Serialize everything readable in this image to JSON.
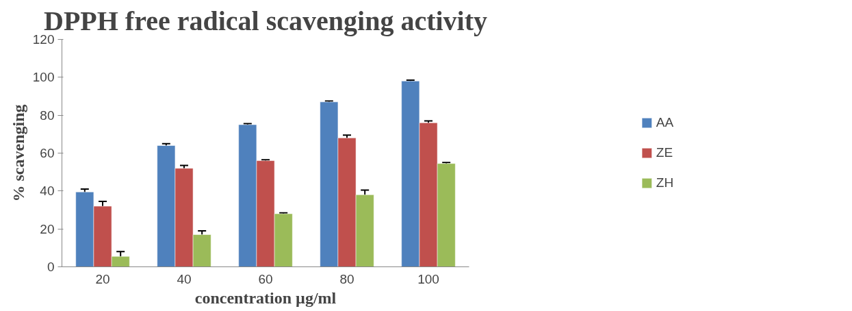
{
  "chart_data": {
    "type": "bar",
    "title": "DPPH free radical scavenging activity",
    "xlabel": "concentration µg/ml",
    "ylabel": "% scavenging",
    "categories": [
      "20",
      "40",
      "60",
      "80",
      "100"
    ],
    "series": [
      {
        "name": "AA",
        "color": "#4f81bd",
        "values": [
          39.5,
          64,
          75,
          87,
          98
        ],
        "errors": [
          1.5,
          1,
          0.5,
          0.5,
          0.5
        ]
      },
      {
        "name": "ZE",
        "color": "#c0504d",
        "values": [
          32,
          52,
          56,
          68,
          76
        ],
        "errors": [
          2.5,
          1.5,
          0.5,
          1.5,
          1
        ]
      },
      {
        "name": "ZH",
        "color": "#9bbb59",
        "values": [
          5.5,
          17,
          28,
          38,
          54.5
        ],
        "errors": [
          2.5,
          2,
          0.5,
          2.5,
          0.5
        ]
      }
    ],
    "ylim": [
      0,
      120
    ],
    "yticks": [
      0,
      20,
      40,
      60,
      80,
      100,
      120
    ],
    "grid": false,
    "legend": "right"
  }
}
